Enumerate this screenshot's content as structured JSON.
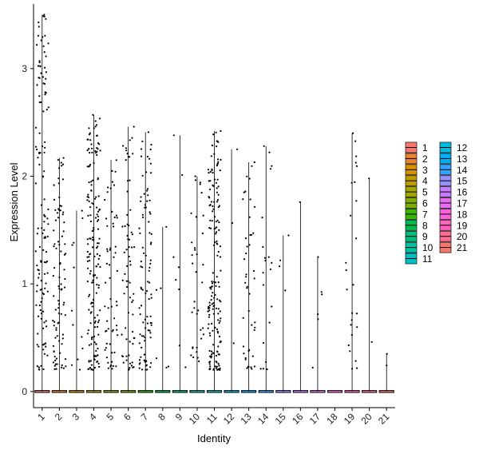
{
  "chart_data": {
    "type": "violin",
    "xlabel": "Identity",
    "ylabel": "Expression Level",
    "ylim": [
      -0.15,
      3.6
    ],
    "yticks": [
      0,
      1,
      2,
      3
    ],
    "categories": [
      "1",
      "2",
      "3",
      "4",
      "5",
      "6",
      "7",
      "8",
      "9",
      "10",
      "11",
      "12",
      "13",
      "14",
      "15",
      "16",
      "17",
      "18",
      "19",
      "20",
      "21"
    ],
    "max_values": [
      3.5,
      2.17,
      1.68,
      2.57,
      2.15,
      2.46,
      2.41,
      1.53,
      2.38,
      2.0,
      2.42,
      2.25,
      2.13,
      2.28,
      1.45,
      1.76,
      1.25,
      0.0,
      2.4,
      1.98,
      0.35
    ],
    "point_counts": [
      130,
      90,
      12,
      170,
      60,
      70,
      95,
      6,
      8,
      35,
      170,
      3,
      45,
      20,
      4,
      1,
      6,
      0,
      25,
      2,
      2
    ],
    "colors": [
      "#F8766D",
      "#EA8331",
      "#D89000",
      "#C09B00",
      "#A3A500",
      "#7CAE00",
      "#39B600",
      "#00BB4E",
      "#00BF7D",
      "#00C1A3",
      "#00BFC4",
      "#00BAE0",
      "#00B0F6",
      "#35A2FF",
      "#9590FF",
      "#C77CFF",
      "#E76BF3",
      "#FA62DB",
      "#FF62BC",
      "#FF6C91",
      "#F8766D"
    ],
    "legend": {
      "position": "right",
      "labels": [
        "1",
        "2",
        "3",
        "4",
        "5",
        "6",
        "7",
        "8",
        "9",
        "10",
        "11",
        "12",
        "13",
        "14",
        "15",
        "16",
        "17",
        "18",
        "19",
        "20",
        "21"
      ]
    }
  }
}
